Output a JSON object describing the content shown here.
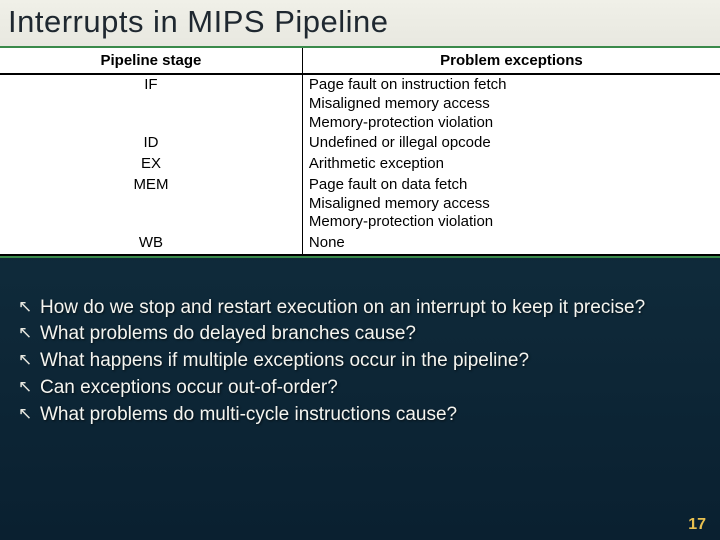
{
  "title": "Interrupts in MIPS Pipeline",
  "table": {
    "header_stage": "Pipeline stage",
    "header_problems": "Problem exceptions",
    "rows": [
      {
        "stage": "IF",
        "problems": [
          "Page fault on instruction fetch",
          "Misaligned memory access",
          "Memory-protection violation"
        ]
      },
      {
        "stage": "ID",
        "problems": [
          "Undefined or illegal opcode"
        ]
      },
      {
        "stage": "EX",
        "problems": [
          "Arithmetic exception"
        ]
      },
      {
        "stage": "MEM",
        "problems": [
          "Page fault on data fetch",
          "Misaligned memory access",
          "Memory-protection violation"
        ]
      },
      {
        "stage": "WB",
        "problems": [
          "None"
        ]
      }
    ]
  },
  "bullets": [
    "How do we stop and restart execution on an interrupt to keep it precise?",
    "What problems do delayed branches cause?",
    "What happens if multiple exceptions occur in the pipeline?",
    "Can exceptions occur out-of-order?",
    "What problems do multi-cycle instructions cause?"
  ],
  "bullet_marker": "↖",
  "page_number": "17",
  "colors": {
    "title_bg": "#ececde",
    "slide_bg_top": "#0a1828",
    "slide_bg_bottom": "#0a2030",
    "accent_rule": "#3a8a4a",
    "bullet_text": "#f5f5f0",
    "page_num": "#e8c050"
  }
}
